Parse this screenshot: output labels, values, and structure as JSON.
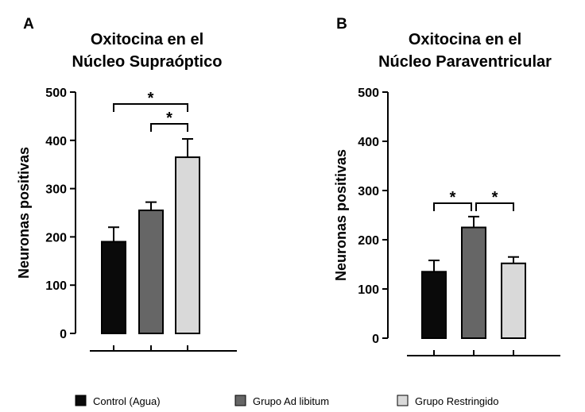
{
  "colors": {
    "Control (Agua)": "#0a0a0a",
    "Grupo Ad libitum": "#666666",
    "Grupo Restringido": "#d9d9d9"
  },
  "legend": [
    "Control (Agua)",
    "Grupo Ad libitum",
    "Grupo Restringido"
  ],
  "chart_data": [
    {
      "panel": "A",
      "type": "bar",
      "title": [
        "Oxitocina en el",
        "Núcleo Supraóptico"
      ],
      "ylabel": "Neuronas positivas",
      "xlabel": "",
      "ylim": [
        0,
        500
      ],
      "yticks": [
        0,
        100,
        200,
        300,
        400,
        500
      ],
      "categories": [
        "Control (Agua)",
        "Grupo Ad libitum",
        "Grupo Restringido"
      ],
      "values": [
        190,
        255,
        365
      ],
      "errors": [
        30,
        17,
        38
      ],
      "significance": [
        {
          "from": 0,
          "to": 2,
          "label": "*"
        },
        {
          "from": 1,
          "to": 2,
          "label": "*"
        }
      ]
    },
    {
      "panel": "B",
      "type": "bar",
      "title": [
        "Oxitocina en el",
        "Núcleo Paraventricular"
      ],
      "ylabel": "Neuronas positivas",
      "xlabel": "",
      "ylim": [
        0,
        500
      ],
      "yticks": [
        0,
        100,
        200,
        300,
        400,
        500
      ],
      "categories": [
        "Control (Agua)",
        "Grupo Ad libitum",
        "Grupo Restringido"
      ],
      "values": [
        135,
        225,
        152
      ],
      "errors": [
        23,
        22,
        13
      ],
      "significance": [
        {
          "from": 0,
          "to": 1,
          "label": "*"
        },
        {
          "from": 1,
          "to": 2,
          "label": "*"
        }
      ]
    }
  ]
}
